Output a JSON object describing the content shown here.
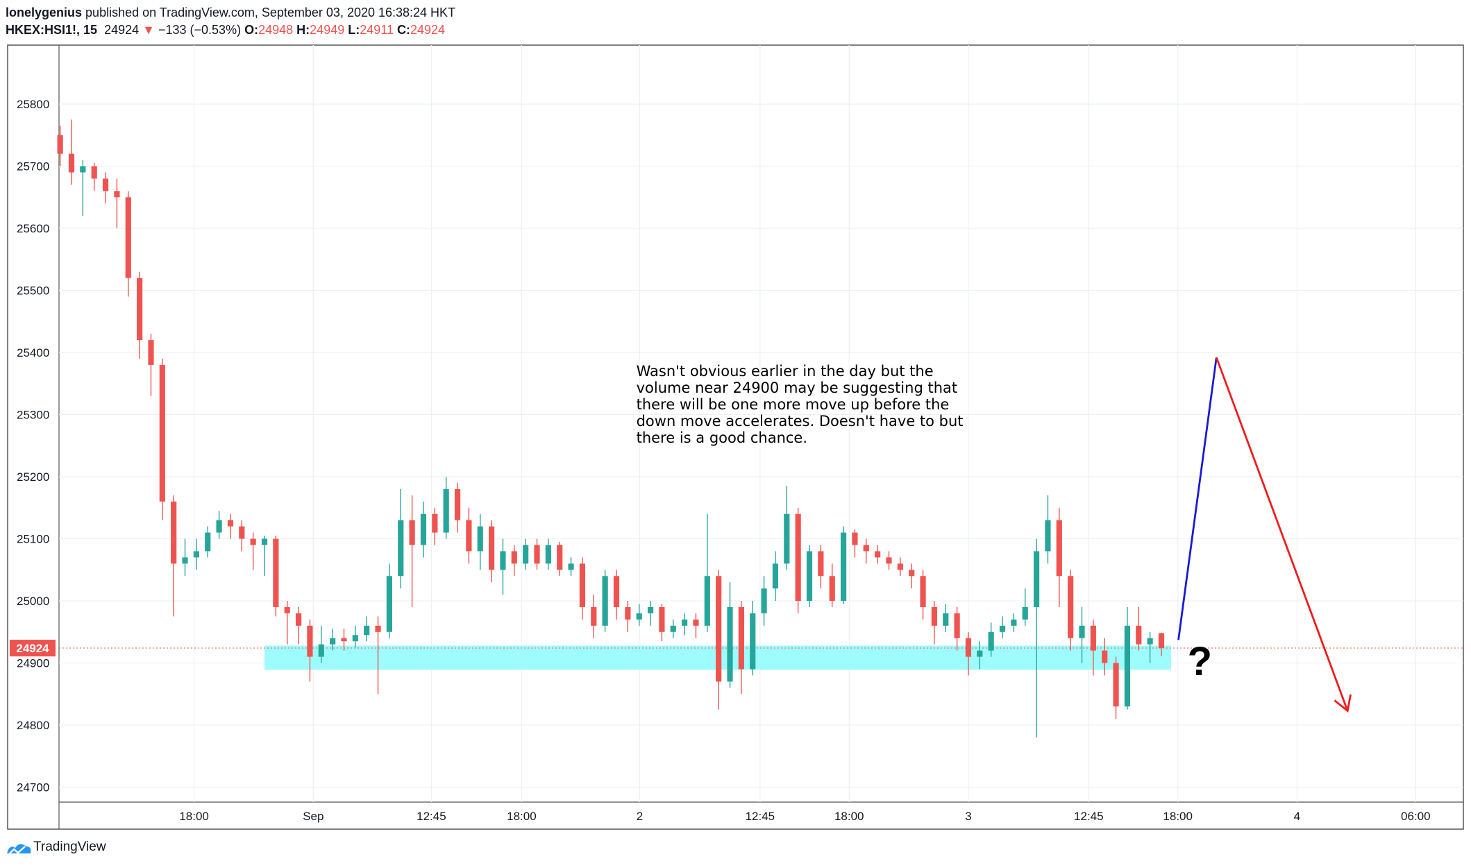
{
  "header": {
    "author": "lonelygenius",
    "published": "published on TradingView.com, September 03, 2020 16:38:24 HKT",
    "symbol": "HKEX:HSI1!, 15",
    "last": "24924",
    "change": "−133 (−0.53%)",
    "ohlc": [
      {
        "label": "O:",
        "value": "24948"
      },
      {
        "label": "H:",
        "value": "24949"
      },
      {
        "label": "L:",
        "value": "24911"
      },
      {
        "label": "C:",
        "value": "24924"
      }
    ]
  },
  "footer": "TradingView",
  "chart_data": {
    "type": "candlestick",
    "up_color": "#26a69a",
    "down_color": "#ef5350",
    "x": [
      0,
      2,
      4,
      6,
      8,
      10,
      12,
      14,
      16,
      18,
      20,
      22,
      24,
      26,
      28,
      30,
      32,
      34,
      36,
      38,
      40,
      42,
      44,
      46,
      48,
      50,
      52,
      54,
      56,
      58,
      60,
      62,
      64,
      66,
      68,
      70,
      72,
      74,
      76,
      78,
      80,
      82,
      84,
      86,
      88,
      90,
      92,
      94,
      96,
      98,
      100,
      102,
      104,
      106,
      108,
      110,
      112,
      114,
      116,
      118,
      120,
      122,
      124,
      126,
      128,
      130,
      132,
      134,
      136,
      138,
      140,
      142,
      144,
      146,
      148,
      150,
      152,
      154,
      156,
      158,
      160,
      162,
      164,
      166,
      168,
      170,
      172,
      174,
      176,
      178,
      180,
      182,
      184,
      186,
      188,
      190,
      192,
      194
    ],
    "open": [
      25750,
      25720,
      25690,
      25700,
      25680,
      25660,
      25650,
      25520,
      25420,
      25380,
      25160,
      25060,
      25070,
      25080,
      25110,
      25130,
      25120,
      25100,
      25090,
      25100,
      24990,
      24980,
      24960,
      24910,
      24930,
      24940,
      24935,
      24945,
      24960,
      24950,
      25040,
      25130,
      25090,
      25140,
      25110,
      25180,
      25130,
      25080,
      25120,
      25050,
      25080,
      25060,
      25090,
      25060,
      25090,
      25050,
      25060,
      24990,
      24960,
      25040,
      24990,
      24970,
      24980,
      24990,
      24950,
      24960,
      24970,
      24960,
      25040,
      24870,
      24990,
      24890,
      24980,
      25020,
      25060,
      25140,
      25000,
      25080,
      25040,
      25000,
      25110,
      25090,
      25080,
      25070,
      25060,
      25050,
      25040,
      24990,
      24960,
      24980,
      24940,
      24910,
      24920,
      24950,
      24960,
      24970,
      24990,
      25080,
      25130,
      25040,
      24940,
      24960,
      24920,
      24900,
      24830,
      24960,
      24930,
      24948
    ],
    "high": [
      25765,
      25775,
      25710,
      25705,
      25690,
      25680,
      25660,
      25530,
      25430,
      25390,
      25170,
      25100,
      25100,
      25120,
      25145,
      25140,
      25130,
      25110,
      25105,
      25105,
      25000,
      24990,
      24970,
      24960,
      24955,
      24955,
      24960,
      24975,
      24975,
      25060,
      25180,
      25170,
      25160,
      25150,
      25200,
      25190,
      25150,
      25140,
      25130,
      25100,
      25090,
      25100,
      25100,
      25100,
      25095,
      25070,
      25070,
      25010,
      25050,
      25050,
      25000,
      24995,
      25000,
      24995,
      24970,
      24980,
      24980,
      25140,
      25050,
      25030,
      25000,
      25000,
      25040,
      25080,
      25185,
      25150,
      25090,
      25090,
      25060,
      25120,
      25115,
      25100,
      25090,
      25080,
      25070,
      25060,
      25050,
      25000,
      24995,
      24990,
      24950,
      24935,
      24965,
      24975,
      24980,
      25020,
      25100,
      25170,
      25150,
      25050,
      24990,
      24970,
      24940,
      24910,
      24990,
      24990,
      24950,
      24949
    ],
    "low": [
      25700,
      25670,
      25620,
      25660,
      25640,
      25600,
      25490,
      25390,
      25330,
      25130,
      24975,
      25040,
      25050,
      25070,
      25100,
      25100,
      25080,
      25050,
      25040,
      24975,
      24930,
      24930,
      24870,
      24900,
      24920,
      24920,
      24925,
      24935,
      24850,
      24940,
      25020,
      24990,
      25070,
      25090,
      25100,
      25110,
      25060,
      25050,
      25030,
      25010,
      25040,
      25050,
      25050,
      25050,
      25040,
      25040,
      24970,
      24940,
      24950,
      24970,
      24950,
      24960,
      24960,
      24935,
      24940,
      24945,
      24940,
      24950,
      24825,
      24860,
      24850,
      24880,
      24960,
      25000,
      25050,
      24980,
      24990,
      25020,
      24990,
      24995,
      25070,
      25060,
      25060,
      25050,
      25040,
      25020,
      24970,
      24930,
      24950,
      24920,
      24880,
      24890,
      24910,
      24940,
      24950,
      24960,
      24780,
      25060,
      24990,
      24920,
      24900,
      24880,
      24880,
      24810,
      24825,
      24920,
      24900,
      24911
    ],
    "close": [
      25720,
      25690,
      25700,
      25680,
      25660,
      25650,
      25520,
      25420,
      25380,
      25160,
      25060,
      25070,
      25080,
      25110,
      25130,
      25120,
      25100,
      25090,
      25100,
      24990,
      24980,
      24960,
      24910,
      24930,
      24940,
      24935,
      24945,
      24960,
      24950,
      25040,
      25130,
      25090,
      25140,
      25110,
      25180,
      25130,
      25080,
      25120,
      25050,
      25080,
      25060,
      25090,
      25060,
      25090,
      25050,
      25060,
      24990,
      24960,
      25040,
      24990,
      24970,
      24980,
      24990,
      24950,
      24960,
      24970,
      24960,
      25040,
      24870,
      24990,
      24890,
      24980,
      25020,
      25060,
      25140,
      25000,
      25080,
      25040,
      25000,
      25110,
      25090,
      25080,
      25070,
      25060,
      25050,
      25040,
      24990,
      24960,
      24980,
      24940,
      24910,
      24920,
      24950,
      24960,
      24970,
      24990,
      25080,
      25130,
      25040,
      24940,
      24960,
      24920,
      24900,
      24830,
      24960,
      24930,
      24940,
      24924
    ],
    "xlim": [
      -0.2,
      247.2
    ],
    "xticks": [
      {
        "value": 23.6,
        "label": "18:00"
      },
      {
        "value": 44.6,
        "label": "Sep"
      },
      {
        "value": 65.4,
        "label": "12:45"
      },
      {
        "value": 81.3,
        "label": "18:00"
      },
      {
        "value": 102.1,
        "label": "2"
      },
      {
        "value": 123.3,
        "label": "12:45"
      },
      {
        "value": 139.0,
        "label": "18:00"
      },
      {
        "value": 160.0,
        "label": "3"
      },
      {
        "value": 181.2,
        "label": "12:45"
      },
      {
        "value": 196.9,
        "label": "18:00"
      },
      {
        "value": 217.9,
        "label": "4"
      },
      {
        "value": 238.8,
        "label": "06:00"
      }
    ],
    "ylim": [
      24676,
      25895
    ],
    "yticks": [
      24700,
      24800,
      24900,
      25000,
      25100,
      25200,
      25300,
      25400,
      25500,
      25600,
      25700,
      25800
    ],
    "grid": true,
    "last_price": 24924,
    "zone": {
      "color": "#9ffcfc",
      "x": [
        36,
        195.7
      ],
      "y": [
        24889,
        24928
      ]
    },
    "drawings": [
      {
        "color": "#1a1ad8",
        "x": [
          197,
          203.7
        ],
        "y": [
          24937,
          25392
        ],
        "arrow": false
      },
      {
        "color": "#f01c1c",
        "x": [
          203.7,
          226.8
        ],
        "y": [
          25392,
          24823
        ],
        "arrow": true
      }
    ],
    "question": {
      "text": "?",
      "x": 198.6,
      "y": 24905
    },
    "annotation": {
      "x": 101.5,
      "y": 25362,
      "lines": [
        "Wasn't obvious earlier in the day but the",
        "volume near 24900 may be suggesting that",
        "there will be one more move up before the",
        "down move accelerates. Doesn't have to but",
        "there is a good chance."
      ]
    }
  }
}
